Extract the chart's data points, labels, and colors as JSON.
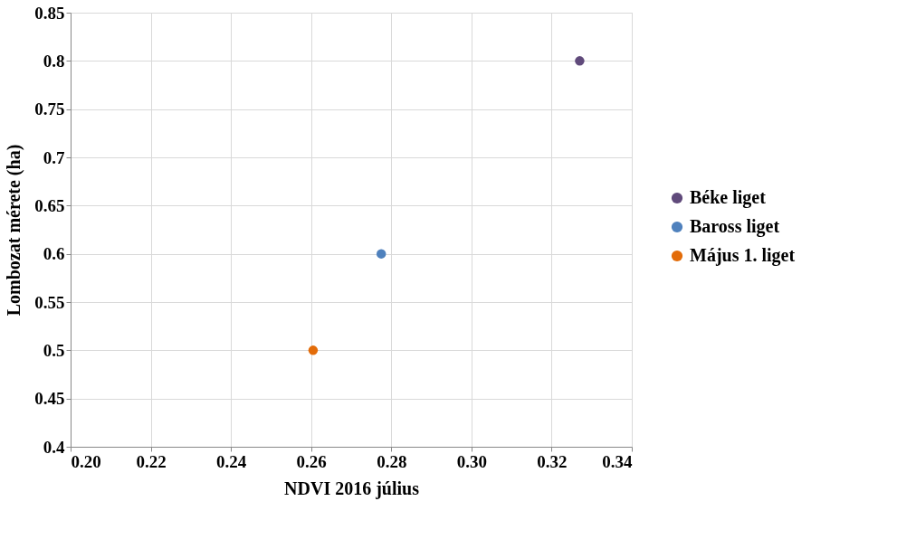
{
  "chart_data": {
    "type": "scatter",
    "xlabel": "NDVI 2016 július",
    "ylabel": "Lombozat  mérete (ha)",
    "series": [
      {
        "name": "Béke liget",
        "color": "#604a7b",
        "x": [
          0.327
        ],
        "values": [
          0.8
        ]
      },
      {
        "name": "Baross liget",
        "color": "#4f81bd",
        "x": [
          0.2775
        ],
        "values": [
          0.6
        ]
      },
      {
        "name": "Május 1. liget",
        "color": "#e36c09",
        "x": [
          0.2605
        ],
        "values": [
          0.5
        ]
      }
    ],
    "xlim": [
      0.2,
      0.34
    ],
    "xticks": [
      {
        "value": 0.2,
        "label": "0.20"
      },
      {
        "value": 0.22,
        "label": "0.22"
      },
      {
        "value": 0.24,
        "label": "0.24"
      },
      {
        "value": 0.26,
        "label": "0.26"
      },
      {
        "value": 0.28,
        "label": "0.28"
      },
      {
        "value": 0.3,
        "label": "0.30"
      },
      {
        "value": 0.32,
        "label": "0.32"
      },
      {
        "value": 0.34,
        "label": "0.34"
      }
    ],
    "ylim": [
      0.4,
      0.85
    ],
    "yticks": [
      0.4,
      0.45,
      0.5,
      0.55,
      0.6,
      0.65,
      0.7,
      0.75,
      0.8,
      0.85
    ],
    "grid": true,
    "legend": "right",
    "marker": "circle"
  }
}
